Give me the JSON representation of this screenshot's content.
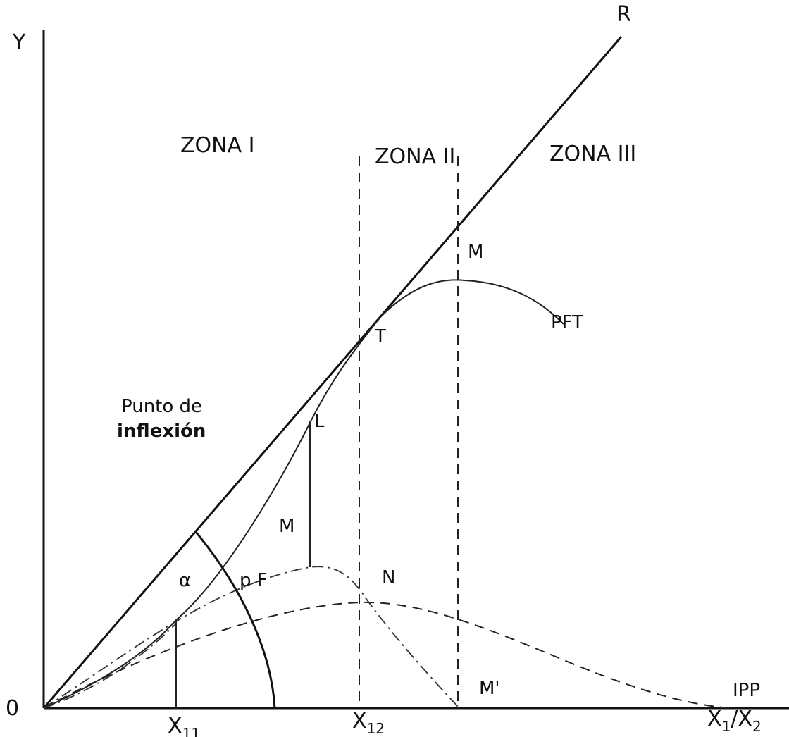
{
  "axes": {
    "y_label": "Y",
    "origin_label": "0",
    "x_label": "X",
    "x_label_sub1": "1",
    "x_label_sep": "/",
    "x_label_x2": "X",
    "x_label_sub2": "2"
  },
  "ticks": {
    "x11_main": "X",
    "x11_sub": "11",
    "x12_main": "X",
    "x12_sub": "12"
  },
  "zones": {
    "zone1": "ZONA I",
    "zone2": "ZONA II",
    "zone3": "ZONA III"
  },
  "points": {
    "R": "R",
    "M_top": "M",
    "T": "T",
    "L": "L",
    "M_mid": "M",
    "N": "N",
    "M_prime": "M'",
    "pF": "p F"
  },
  "curves": {
    "pft": "PFT",
    "ipp": "IPP"
  },
  "annotations": {
    "inflection_line1": "Punto de",
    "inflection_line2": "inflexión",
    "alpha": "α"
  }
}
